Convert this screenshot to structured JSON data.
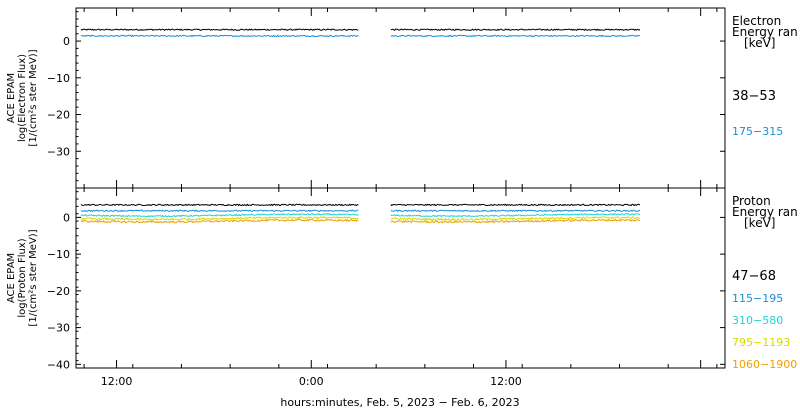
{
  "chart_data": [
    {
      "type": "line",
      "panel": "electron",
      "ylabel_lines": [
        "ACE EPAM",
        "log(Electron Flux)",
        "[1/(cm²s ster MeV)]"
      ],
      "ylim": [
        -40,
        9
      ],
      "yticks": [
        0,
        -10,
        -20,
        -30
      ],
      "ytick_labels": [
        "0",
        "−10",
        "−20",
        "−30"
      ],
      "legend_title": [
        "Electron",
        "Energy ran",
        "[keV]"
      ],
      "gaps_hours": [
        [
          26.9,
          28.9
        ]
      ],
      "series": [
        {
          "name": "38−53",
          "color": "#000000",
          "y": 3.1
        },
        {
          "name": "175−315",
          "color": "#1a8fd8",
          "y": 1.4
        }
      ]
    },
    {
      "type": "line",
      "panel": "proton",
      "ylabel_lines": [
        "ACE EPAM",
        "log(Proton Flux)",
        "[1/(cm²s ster MeV)]"
      ],
      "ylim": [
        -41,
        8
      ],
      "yticks": [
        0,
        -10,
        -20,
        -30,
        -40
      ],
      "ytick_labels": [
        "0",
        "−10",
        "−20",
        "−30",
        "−40"
      ],
      "legend_title": [
        "Proton",
        "Energy ran",
        "[keV]"
      ],
      "gaps_hours": [
        [
          26.9,
          28.9
        ]
      ],
      "series": [
        {
          "name": "47−68",
          "color": "#000000",
          "y": 3.4
        },
        {
          "name": "115−195",
          "color": "#1a8fd8",
          "y": 1.8
        },
        {
          "name": "310−580",
          "color": "#22d4d4",
          "y": 0.6
        },
        {
          "name": "795−1193",
          "color": "#d8d800",
          "y": -0.3
        },
        {
          "name": "1060−1900",
          "color": "#f0a000",
          "y": -1.0
        }
      ]
    }
  ],
  "x_axis": {
    "range_hours": [
      9.5,
      49.5
    ],
    "ticks_hours": [
      12,
      24,
      36,
      48
    ],
    "tick_labels": [
      "12:00",
      "0:00",
      "12:00",
      ""
    ],
    "data_end_hours": 44.3,
    "xlabel": "hours:minutes, Feb.  5, 2023 − Feb.  6, 2023"
  }
}
